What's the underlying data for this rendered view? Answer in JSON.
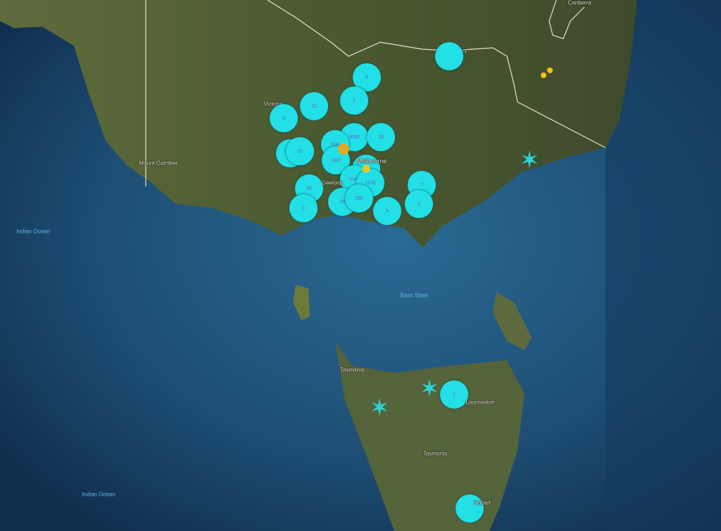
{
  "colors": {
    "cluster": "#22e0e6",
    "event_dot": "#f2c419",
    "star": "#2ad6da",
    "sea": "#1c4a6e",
    "land": "#4e5e32"
  },
  "labels": {
    "canberra": "Canberra",
    "albury": "Albury",
    "victoria": "Victoria",
    "mount_gambier": "Mount Gambier",
    "melbourne": "Melbourne",
    "geelong": "Geelong",
    "indian_ocean_1": "Indian Ocean",
    "bass_strait": "Bass Strait",
    "tasmania_north": "Tasmania",
    "launceston": "Launceston",
    "tasmania": "Tasmania",
    "hobart": "Hobart",
    "indian_ocean_2": "Indian Ocean"
  },
  "clusters": [
    "8",
    "2",
    "22",
    "5",
    "18",
    "10",
    "3030",
    "38",
    "504",
    "1307",
    "24",
    "1043",
    "1128",
    "25",
    "3",
    "33",
    "298",
    "4",
    "7",
    "2",
    "",
    "2",
    ""
  ],
  "markers": {
    "event_dots": 4,
    "star_markers": 3
  }
}
